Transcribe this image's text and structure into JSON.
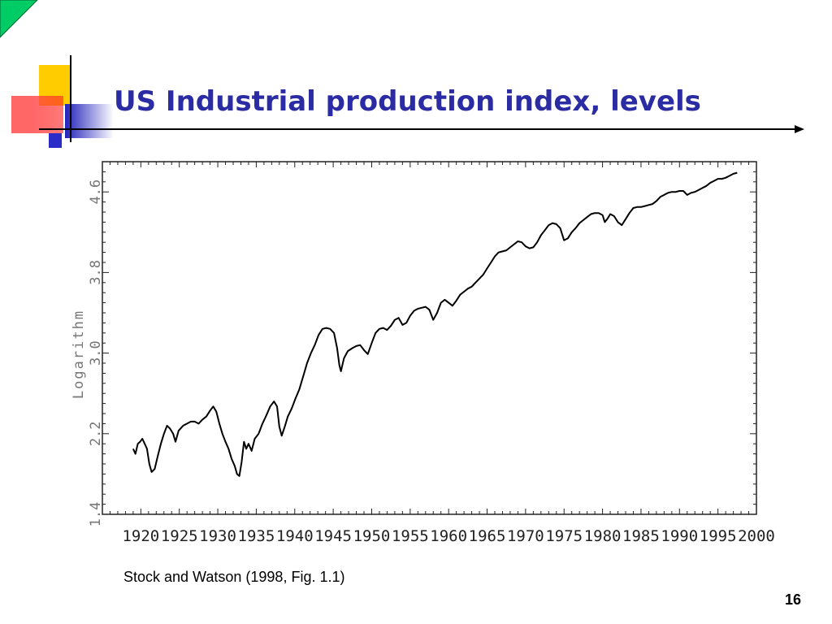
{
  "slide": {
    "title": "US Industrial production index, levels",
    "caption": "Stock and Watson (1998, Fig. 1.1)",
    "page_number": "16"
  },
  "colors": {
    "title": "#2b2ba3",
    "accent_yellow": "#ffcc00",
    "accent_red": "#ff3333",
    "accent_blue": "#3333cc",
    "accent_green": "#00cc66",
    "line": "#000000"
  },
  "chart_data": {
    "type": "line",
    "title": "",
    "xlabel": "",
    "ylabel": "Logarithm",
    "xlim": [
      1915,
      2000
    ],
    "ylim": [
      1.4,
      4.9
    ],
    "x_ticks": [
      "1920",
      "1925",
      "1930",
      "1935",
      "1940",
      "1945",
      "1950",
      "1955",
      "1960",
      "1965",
      "1970",
      "1975",
      "1980",
      "1985",
      "1990",
      "1995",
      "2000"
    ],
    "y_ticks": [
      "1.4",
      "2.2",
      "3.0",
      "3.8",
      "4.6"
    ],
    "grid": false,
    "series": [
      {
        "values": [
          [
            1919.0,
            2.05
          ],
          [
            1919.3,
            2.0
          ],
          [
            1919.6,
            2.1
          ],
          [
            1919.9,
            2.12
          ],
          [
            1920.2,
            2.15
          ],
          [
            1920.5,
            2.1
          ],
          [
            1920.8,
            2.05
          ],
          [
            1921.1,
            1.9
          ],
          [
            1921.4,
            1.82
          ],
          [
            1921.8,
            1.85
          ],
          [
            1922.2,
            1.98
          ],
          [
            1922.6,
            2.1
          ],
          [
            1923.0,
            2.2
          ],
          [
            1923.4,
            2.28
          ],
          [
            1923.8,
            2.25
          ],
          [
            1924.2,
            2.2
          ],
          [
            1924.5,
            2.12
          ],
          [
            1924.9,
            2.23
          ],
          [
            1925.5,
            2.28
          ],
          [
            1926.0,
            2.3
          ],
          [
            1926.5,
            2.32
          ],
          [
            1927.0,
            2.32
          ],
          [
            1927.5,
            2.3
          ],
          [
            1928.0,
            2.34
          ],
          [
            1928.5,
            2.37
          ],
          [
            1929.0,
            2.43
          ],
          [
            1929.4,
            2.47
          ],
          [
            1929.8,
            2.42
          ],
          [
            1930.2,
            2.3
          ],
          [
            1930.6,
            2.2
          ],
          [
            1931.0,
            2.12
          ],
          [
            1931.4,
            2.05
          ],
          [
            1931.8,
            1.95
          ],
          [
            1932.2,
            1.88
          ],
          [
            1932.5,
            1.8
          ],
          [
            1932.8,
            1.78
          ],
          [
            1933.1,
            1.92
          ],
          [
            1933.4,
            2.12
          ],
          [
            1933.7,
            2.05
          ],
          [
            1934.0,
            2.1
          ],
          [
            1934.4,
            2.03
          ],
          [
            1934.8,
            2.15
          ],
          [
            1935.3,
            2.2
          ],
          [
            1935.8,
            2.3
          ],
          [
            1936.3,
            2.38
          ],
          [
            1936.8,
            2.47
          ],
          [
            1937.3,
            2.52
          ],
          [
            1937.7,
            2.47
          ],
          [
            1938.0,
            2.27
          ],
          [
            1938.3,
            2.18
          ],
          [
            1938.7,
            2.27
          ],
          [
            1939.1,
            2.37
          ],
          [
            1939.6,
            2.45
          ],
          [
            1940.1,
            2.55
          ],
          [
            1940.6,
            2.64
          ],
          [
            1941.1,
            2.77
          ],
          [
            1941.6,
            2.9
          ],
          [
            1942.1,
            3.0
          ],
          [
            1942.6,
            3.08
          ],
          [
            1943.1,
            3.18
          ],
          [
            1943.6,
            3.24
          ],
          [
            1944.1,
            3.25
          ],
          [
            1944.6,
            3.24
          ],
          [
            1945.1,
            3.2
          ],
          [
            1945.5,
            3.05
          ],
          [
            1945.8,
            2.88
          ],
          [
            1946.0,
            2.82
          ],
          [
            1946.4,
            2.95
          ],
          [
            1946.9,
            3.02
          ],
          [
            1947.5,
            3.05
          ],
          [
            1948.0,
            3.07
          ],
          [
            1948.5,
            3.08
          ],
          [
            1949.0,
            3.03
          ],
          [
            1949.5,
            2.99
          ],
          [
            1950.0,
            3.1
          ],
          [
            1950.5,
            3.2
          ],
          [
            1951.0,
            3.24
          ],
          [
            1951.5,
            3.25
          ],
          [
            1952.0,
            3.23
          ],
          [
            1952.5,
            3.27
          ],
          [
            1953.0,
            3.33
          ],
          [
            1953.5,
            3.35
          ],
          [
            1954.0,
            3.28
          ],
          [
            1954.5,
            3.3
          ],
          [
            1955.0,
            3.37
          ],
          [
            1955.5,
            3.42
          ],
          [
            1956.0,
            3.44
          ],
          [
            1956.5,
            3.45
          ],
          [
            1957.0,
            3.46
          ],
          [
            1957.5,
            3.43
          ],
          [
            1958.0,
            3.33
          ],
          [
            1958.5,
            3.4
          ],
          [
            1959.0,
            3.5
          ],
          [
            1959.5,
            3.53
          ],
          [
            1960.0,
            3.5
          ],
          [
            1960.5,
            3.47
          ],
          [
            1961.0,
            3.52
          ],
          [
            1961.5,
            3.58
          ],
          [
            1962.0,
            3.61
          ],
          [
            1962.5,
            3.64
          ],
          [
            1963.0,
            3.66
          ],
          [
            1963.5,
            3.7
          ],
          [
            1964.0,
            3.74
          ],
          [
            1964.5,
            3.78
          ],
          [
            1965.0,
            3.84
          ],
          [
            1965.5,
            3.9
          ],
          [
            1966.0,
            3.96
          ],
          [
            1966.5,
            4.0
          ],
          [
            1967.0,
            4.01
          ],
          [
            1967.5,
            4.02
          ],
          [
            1968.0,
            4.05
          ],
          [
            1968.5,
            4.08
          ],
          [
            1969.0,
            4.11
          ],
          [
            1969.5,
            4.1
          ],
          [
            1970.0,
            4.06
          ],
          [
            1970.5,
            4.04
          ],
          [
            1971.0,
            4.05
          ],
          [
            1971.5,
            4.1
          ],
          [
            1972.0,
            4.17
          ],
          [
            1972.5,
            4.22
          ],
          [
            1973.0,
            4.27
          ],
          [
            1973.5,
            4.29
          ],
          [
            1974.0,
            4.28
          ],
          [
            1974.5,
            4.24
          ],
          [
            1975.0,
            4.12
          ],
          [
            1975.5,
            4.14
          ],
          [
            1976.0,
            4.2
          ],
          [
            1976.5,
            4.24
          ],
          [
            1977.0,
            4.29
          ],
          [
            1977.5,
            4.32
          ],
          [
            1978.0,
            4.35
          ],
          [
            1978.5,
            4.38
          ],
          [
            1979.0,
            4.39
          ],
          [
            1979.5,
            4.39
          ],
          [
            1980.0,
            4.37
          ],
          [
            1980.3,
            4.3
          ],
          [
            1980.7,
            4.34
          ],
          [
            1981.0,
            4.38
          ],
          [
            1981.5,
            4.36
          ],
          [
            1982.0,
            4.3
          ],
          [
            1982.5,
            4.27
          ],
          [
            1983.0,
            4.33
          ],
          [
            1983.5,
            4.39
          ],
          [
            1984.0,
            4.44
          ],
          [
            1984.5,
            4.45
          ],
          [
            1985.0,
            4.45
          ],
          [
            1985.5,
            4.46
          ],
          [
            1986.0,
            4.47
          ],
          [
            1986.5,
            4.48
          ],
          [
            1987.0,
            4.51
          ],
          [
            1987.5,
            4.55
          ],
          [
            1988.0,
            4.57
          ],
          [
            1988.5,
            4.59
          ],
          [
            1989.0,
            4.6
          ],
          [
            1989.5,
            4.6
          ],
          [
            1990.0,
            4.61
          ],
          [
            1990.5,
            4.61
          ],
          [
            1991.0,
            4.57
          ],
          [
            1991.5,
            4.59
          ],
          [
            1992.0,
            4.6
          ],
          [
            1992.5,
            4.62
          ],
          [
            1993.0,
            4.64
          ],
          [
            1993.5,
            4.66
          ],
          [
            1994.0,
            4.69
          ],
          [
            1994.5,
            4.71
          ],
          [
            1995.0,
            4.73
          ],
          [
            1995.5,
            4.73
          ],
          [
            1996.0,
            4.74
          ],
          [
            1996.5,
            4.76
          ],
          [
            1997.0,
            4.78
          ],
          [
            1997.5,
            4.79
          ]
        ]
      }
    ]
  }
}
